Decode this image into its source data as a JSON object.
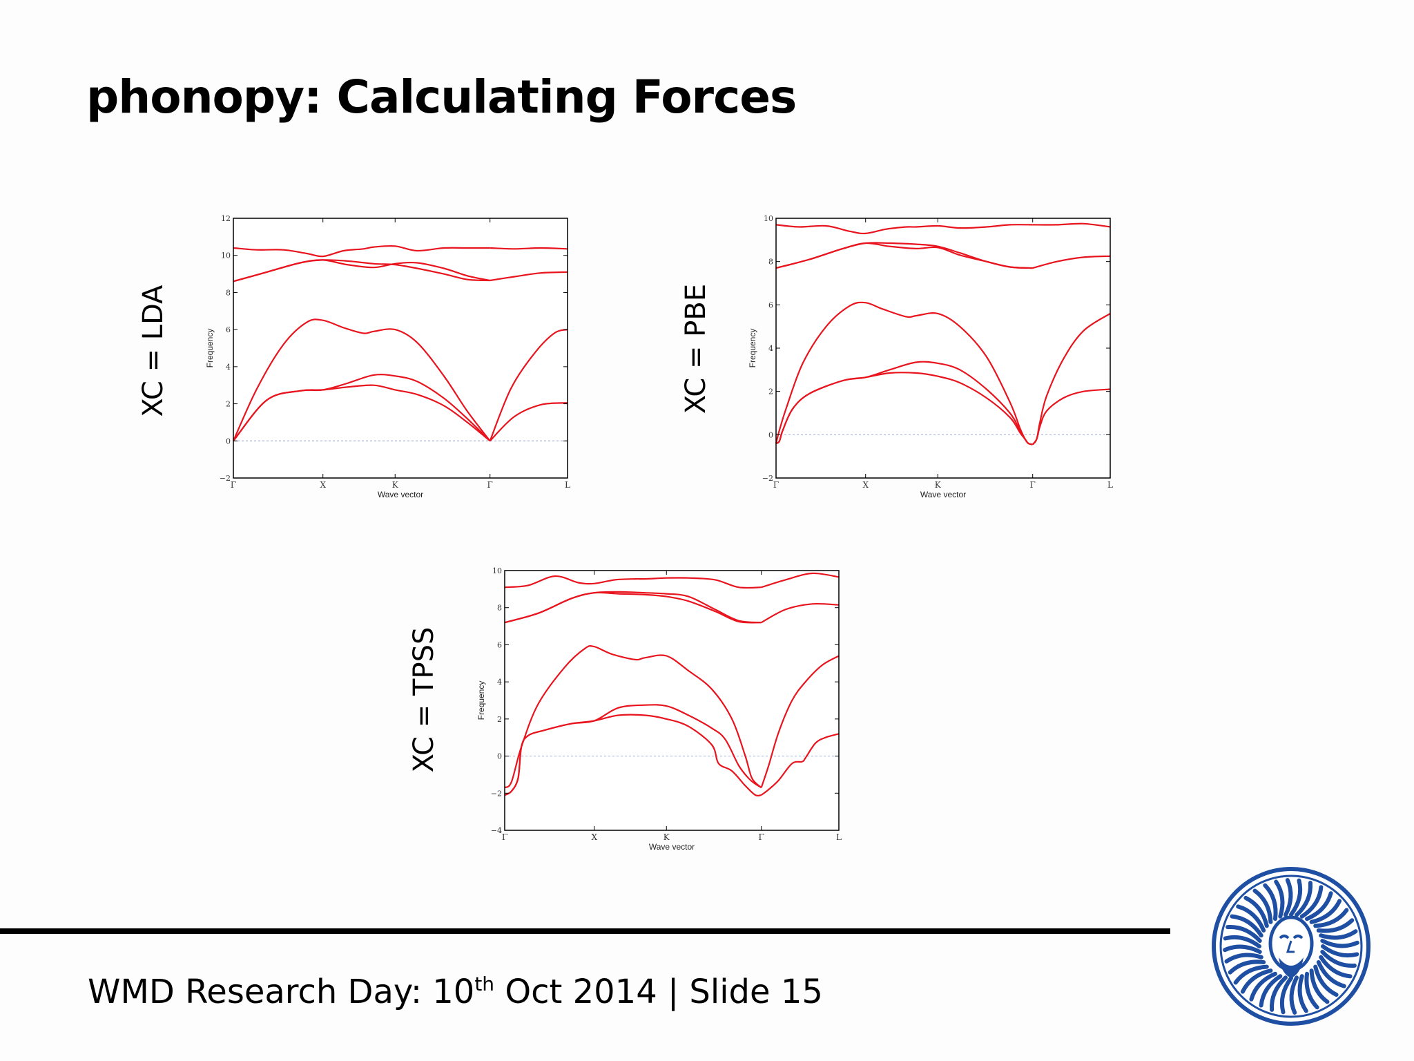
{
  "slide": {
    "title": "phonopy: Calculating Forces",
    "footer": {
      "prefix": "WMD Research Day: 10",
      "superscript": "th",
      "suffix": " Oct 2014 | Slide 15"
    }
  },
  "labels": {
    "lda": "XC = LDA",
    "pbe": "XC = PBE",
    "tpss": "XC = TPSS"
  },
  "colors": {
    "band": "#e8141e",
    "zero_line": "#aab4dc",
    "rule": "#000000",
    "seal": "#1f4fa3"
  },
  "chart_data": [
    {
      "type": "line",
      "xlabel": "Wave vector",
      "ylabel": "Frequency",
      "ylim": [
        -2,
        12
      ],
      "yticks": [
        -2,
        0,
        2,
        4,
        6,
        8,
        10,
        12
      ],
      "ytick_labels": [
        "−2",
        "0",
        "2",
        "4",
        "6",
        "8",
        "10",
        "12"
      ],
      "xticks": [
        0,
        0.268,
        0.484,
        0.768,
        1.0
      ],
      "xtick_labels": [
        "Γ",
        "X",
        "K",
        "Γ",
        "L"
      ],
      "xlim": [
        0,
        1
      ],
      "grid": false,
      "zero_line": true,
      "series": [
        {
          "x": [
            0,
            0.1,
            0.2,
            0.268,
            0.34,
            0.42,
            0.484,
            0.55,
            0.63,
            0.7,
            0.768
          ],
          "y": [
            0,
            2.2,
            2.7,
            2.75,
            2.9,
            3.0,
            2.75,
            2.5,
            1.9,
            1.0,
            0
          ]
        },
        {
          "x": [
            0,
            0.1,
            0.2,
            0.268,
            0.34,
            0.42,
            0.484,
            0.55,
            0.63,
            0.7,
            0.768
          ],
          "y": [
            0,
            2.2,
            2.7,
            2.75,
            3.1,
            3.55,
            3.5,
            3.2,
            2.3,
            1.2,
            0
          ]
        },
        {
          "x": [
            0,
            0.07,
            0.15,
            0.22,
            0.268,
            0.33,
            0.39,
            0.42,
            0.484,
            0.55,
            0.63,
            0.7,
            0.768
          ],
          "y": [
            0,
            2.8,
            5.2,
            6.4,
            6.5,
            6.1,
            5.8,
            5.9,
            6.0,
            5.3,
            3.5,
            1.6,
            0
          ]
        },
        {
          "x": [
            0.768,
            0.84,
            0.92,
            1.0
          ],
          "y": [
            0,
            1.3,
            1.95,
            2.05
          ]
        },
        {
          "x": [
            0.768,
            0.83,
            0.9,
            0.96,
            1.0
          ],
          "y": [
            0,
            2.8,
            4.7,
            5.8,
            6.0
          ]
        },
        {
          "x": [
            0,
            0.1,
            0.2,
            0.268,
            0.34,
            0.42,
            0.484,
            0.55,
            0.63,
            0.7,
            0.768
          ],
          "y": [
            8.6,
            9.1,
            9.6,
            9.75,
            9.7,
            9.55,
            9.5,
            9.3,
            9.0,
            8.7,
            8.65
          ]
        },
        {
          "x": [
            0,
            0.1,
            0.2,
            0.268,
            0.34,
            0.42,
            0.484,
            0.55,
            0.63,
            0.7,
            0.768
          ],
          "y": [
            8.6,
            9.1,
            9.6,
            9.75,
            9.5,
            9.35,
            9.55,
            9.6,
            9.3,
            8.9,
            8.65
          ]
        },
        {
          "x": [
            0,
            0.07,
            0.15,
            0.22,
            0.268,
            0.33,
            0.39,
            0.42,
            0.484,
            0.55,
            0.63,
            0.7,
            0.768
          ],
          "y": [
            10.4,
            10.3,
            10.3,
            10.1,
            9.95,
            10.25,
            10.35,
            10.45,
            10.5,
            10.25,
            10.4,
            10.4,
            10.4
          ]
        },
        {
          "x": [
            0.768,
            0.84,
            0.92,
            1.0
          ],
          "y": [
            8.65,
            8.85,
            9.05,
            9.1
          ]
        },
        {
          "x": [
            0.768,
            0.84,
            0.92,
            1.0
          ],
          "y": [
            10.4,
            10.35,
            10.4,
            10.35
          ]
        }
      ]
    },
    {
      "type": "line",
      "xlabel": "Wave vector",
      "ylabel": "Frequency",
      "ylim": [
        -2,
        10
      ],
      "yticks": [
        -2,
        0,
        2,
        4,
        6,
        8,
        10
      ],
      "ytick_labels": [
        "−2",
        "0",
        "2",
        "4",
        "6",
        "8",
        "10"
      ],
      "xticks": [
        0,
        0.268,
        0.484,
        0.768,
        1.0
      ],
      "xtick_labels": [
        "Γ",
        "X",
        "K",
        "Γ",
        "L"
      ],
      "xlim": [
        0,
        1
      ],
      "grid": false,
      "zero_line": true,
      "series": [
        {
          "x": [
            0,
            0.01,
            0.02,
            0.05,
            0.1,
            0.2,
            0.268,
            0.34,
            0.42,
            0.484,
            0.55,
            0.63,
            0.7,
            0.73,
            0.745,
            0.755,
            0.768
          ],
          "y": [
            -0.4,
            -0.3,
            0.2,
            1.2,
            1.9,
            2.5,
            2.65,
            2.85,
            2.85,
            2.7,
            2.4,
            1.7,
            0.8,
            0.1,
            -0.2,
            -0.4,
            -0.45
          ]
        },
        {
          "x": [
            0,
            0.01,
            0.02,
            0.05,
            0.1,
            0.2,
            0.268,
            0.34,
            0.42,
            0.484,
            0.55,
            0.63,
            0.7,
            0.73,
            0.745,
            0.755,
            0.768
          ],
          "y": [
            -0.4,
            -0.3,
            0.2,
            1.2,
            1.9,
            2.5,
            2.65,
            3.0,
            3.35,
            3.3,
            3.0,
            2.1,
            1.0,
            0.2,
            -0.2,
            -0.4,
            -0.45
          ]
        },
        {
          "x": [
            0,
            0.01,
            0.03,
            0.08,
            0.15,
            0.22,
            0.268,
            0.32,
            0.39,
            0.42,
            0.484,
            0.55,
            0.63,
            0.7,
            0.73,
            0.745,
            0.755,
            0.768
          ],
          "y": [
            -0.4,
            0.2,
            1.2,
            3.3,
            5.0,
            5.95,
            6.1,
            5.8,
            5.45,
            5.5,
            5.6,
            5.0,
            3.6,
            1.5,
            0.3,
            -0.2,
            -0.4,
            -0.45
          ]
        },
        {
          "x": [
            0.768,
            0.78,
            0.79,
            0.81,
            0.86,
            0.92,
            1.0
          ],
          "y": [
            -0.45,
            -0.2,
            0.4,
            1.1,
            1.7,
            2.0,
            2.1
          ]
        },
        {
          "x": [
            0.768,
            0.78,
            0.79,
            0.81,
            0.86,
            0.92,
            1.0
          ],
          "y": [
            -0.45,
            -0.2,
            0.6,
            1.8,
            3.5,
            4.8,
            5.6
          ]
        },
        {
          "x": [
            0,
            0.1,
            0.2,
            0.268,
            0.34,
            0.42,
            0.484,
            0.55,
            0.63,
            0.7,
            0.768
          ],
          "y": [
            7.7,
            8.1,
            8.6,
            8.85,
            8.85,
            8.8,
            8.7,
            8.4,
            8.0,
            7.75,
            7.7
          ]
        },
        {
          "x": [
            0,
            0.1,
            0.2,
            0.268,
            0.34,
            0.42,
            0.484,
            0.55,
            0.63,
            0.7,
            0.768
          ],
          "y": [
            7.7,
            8.1,
            8.6,
            8.85,
            8.7,
            8.6,
            8.65,
            8.3,
            8.0,
            7.75,
            7.7
          ]
        },
        {
          "x": [
            0,
            0.07,
            0.15,
            0.22,
            0.268,
            0.33,
            0.39,
            0.42,
            0.484,
            0.55,
            0.63,
            0.7,
            0.768
          ],
          "y": [
            9.7,
            9.6,
            9.65,
            9.4,
            9.3,
            9.5,
            9.6,
            9.6,
            9.65,
            9.55,
            9.6,
            9.7,
            9.7
          ]
        },
        {
          "x": [
            0.768,
            0.84,
            0.92,
            1.0
          ],
          "y": [
            7.7,
            8.0,
            8.2,
            8.25
          ]
        },
        {
          "x": [
            0.768,
            0.84,
            0.92,
            1.0
          ],
          "y": [
            9.7,
            9.7,
            9.75,
            9.6
          ]
        }
      ]
    },
    {
      "type": "line",
      "xlabel": "Wave vector",
      "ylabel": "Frequency",
      "ylim": [
        -4,
        10
      ],
      "yticks": [
        -4,
        -2,
        0,
        2,
        4,
        6,
        8,
        10
      ],
      "ytick_labels": [
        "−4",
        "−2",
        "0",
        "2",
        "4",
        "6",
        "8",
        "10"
      ],
      "xticks": [
        0,
        0.268,
        0.484,
        0.768,
        1.0
      ],
      "xtick_labels": [
        "Γ",
        "X",
        "K",
        "Γ",
        "L"
      ],
      "xlim": [
        0,
        1
      ],
      "grid": false,
      "zero_line": true,
      "series": [
        {
          "x": [
            0,
            0.02,
            0.04,
            0.05,
            0.07,
            0.12,
            0.2,
            0.268,
            0.34,
            0.42,
            0.484,
            0.55,
            0.62,
            0.64,
            0.68,
            0.72,
            0.75,
            0.768
          ],
          "y": [
            -2.1,
            -1.9,
            -1.2,
            0.5,
            1.1,
            1.4,
            1.75,
            1.9,
            2.2,
            2.2,
            2.0,
            1.6,
            0.6,
            -0.4,
            -0.8,
            -1.6,
            -2.1,
            -2.1
          ]
        },
        {
          "x": [
            0,
            0.02,
            0.04,
            0.05,
            0.07,
            0.12,
            0.2,
            0.268,
            0.34,
            0.42,
            0.484,
            0.55,
            0.62,
            0.66,
            0.7,
            0.73,
            0.75,
            0.768
          ],
          "y": [
            -2.1,
            -1.9,
            -1.2,
            0.5,
            1.1,
            1.4,
            1.75,
            1.9,
            2.6,
            2.75,
            2.7,
            2.2,
            1.5,
            0.9,
            -0.5,
            -1.2,
            -1.5,
            -1.7
          ]
        },
        {
          "x": [
            0,
            0.02,
            0.05,
            0.1,
            0.18,
            0.24,
            0.268,
            0.32,
            0.39,
            0.42,
            0.484,
            0.55,
            0.62,
            0.68,
            0.72,
            0.74,
            0.768
          ],
          "y": [
            -1.7,
            -1.4,
            0.5,
            2.8,
            4.8,
            5.8,
            5.9,
            5.5,
            5.2,
            5.3,
            5.4,
            4.6,
            3.6,
            2.0,
            0.0,
            -1.2,
            -1.7
          ]
        },
        {
          "x": [
            0.768,
            0.79,
            0.82,
            0.86,
            0.89,
            0.9,
            0.93,
            0.96,
            1.0
          ],
          "y": [
            -2.1,
            -1.8,
            -1.3,
            -0.4,
            -0.3,
            -0.1,
            0.7,
            1.0,
            1.2
          ]
        },
        {
          "x": [
            0.768,
            0.79,
            0.82,
            0.86,
            0.9,
            0.95,
            1.0
          ],
          "y": [
            -1.7,
            -0.5,
            1.3,
            3.0,
            4.0,
            4.9,
            5.4
          ]
        },
        {
          "x": [
            0,
            0.1,
            0.2,
            0.268,
            0.34,
            0.42,
            0.484,
            0.55,
            0.63,
            0.7,
            0.768
          ],
          "y": [
            7.2,
            7.7,
            8.5,
            8.8,
            8.75,
            8.7,
            8.6,
            8.35,
            7.8,
            7.25,
            7.2
          ]
        },
        {
          "x": [
            0,
            0.1,
            0.2,
            0.268,
            0.34,
            0.42,
            0.484,
            0.55,
            0.63,
            0.7,
            0.768
          ],
          "y": [
            7.2,
            7.7,
            8.5,
            8.8,
            8.85,
            8.8,
            8.75,
            8.6,
            7.9,
            7.3,
            7.2
          ]
        },
        {
          "x": [
            0,
            0.07,
            0.15,
            0.22,
            0.268,
            0.33,
            0.39,
            0.42,
            0.484,
            0.55,
            0.63,
            0.7,
            0.768
          ],
          "y": [
            9.1,
            9.2,
            9.7,
            9.35,
            9.3,
            9.5,
            9.55,
            9.55,
            9.6,
            9.6,
            9.5,
            9.1,
            9.1
          ]
        },
        {
          "x": [
            0.768,
            0.84,
            0.92,
            1.0
          ],
          "y": [
            7.2,
            7.9,
            8.2,
            8.15
          ]
        },
        {
          "x": [
            0.768,
            0.84,
            0.92,
            1.0
          ],
          "y": [
            9.1,
            9.5,
            9.85,
            9.65
          ]
        }
      ]
    }
  ]
}
